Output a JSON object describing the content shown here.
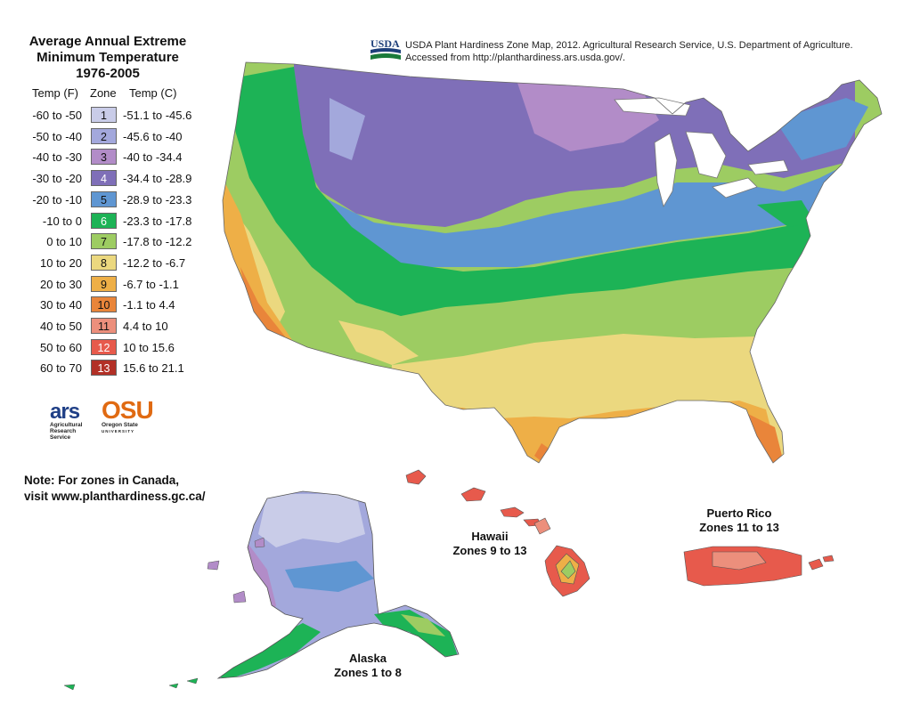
{
  "legend": {
    "title_lines": [
      "Average Annual Extreme",
      "Minimum Temperature",
      "1976-2005"
    ],
    "col_f": "Temp (F)",
    "col_zone": "Zone",
    "col_c": "Temp (C)",
    "zones": [
      {
        "f": "-60 to -50",
        "zone": "1",
        "c": "-51.1 to -45.6",
        "color": "#c9cce8"
      },
      {
        "f": "-50 to -40",
        "zone": "2",
        "c": "-45.6 to -40",
        "color": "#a3a8dc"
      },
      {
        "f": "-40 to -30",
        "zone": "3",
        "c": "-40 to -34.4",
        "color": "#b28cc8"
      },
      {
        "f": "-30 to -20",
        "zone": "4",
        "c": "-34.4 to -28.9",
        "color": "#7f6fb8"
      },
      {
        "f": "-20 to -10",
        "zone": "5",
        "c": "-28.9 to -23.3",
        "color": "#5f96d2"
      },
      {
        "f": "-10 to 0",
        "zone": "6",
        "c": "-23.3 to -17.8",
        "color": "#1db356"
      },
      {
        "f": "0 to 10",
        "zone": "7",
        "c": "-17.8 to -12.2",
        "color": "#9dcc62"
      },
      {
        "f": "10 to 20",
        "zone": "8",
        "c": "-12.2 to -6.7",
        "color": "#ebd87f"
      },
      {
        "f": "20 to 30",
        "zone": "9",
        "c": "-6.7 to -1.1",
        "color": "#eeaf47"
      },
      {
        "f": "30 to 40",
        "zone": "10",
        "c": "-1.1 to 4.4",
        "color": "#e9853a"
      },
      {
        "f": "40 to 50",
        "zone": "11",
        "c": "4.4 to 10",
        "color": "#ec8f7c"
      },
      {
        "f": "50 to 60",
        "zone": "12",
        "c": "10 to 15.6",
        "color": "#e75a4c"
      },
      {
        "f": "60 to 70",
        "zone": "13",
        "c": "15.6 to 21.1",
        "color": "#b23026"
      }
    ]
  },
  "source": {
    "logo_text": "USDA",
    "line1": "USDA Plant Hardiness Zone Map, 2012. Agricultural Research Service, U.S. Department of Agriculture.",
    "line2": "Accessed from http://planthardiness.ars.usda.gov/."
  },
  "logos": {
    "ars_mark": "ars",
    "ars_lines": [
      "Agricultural",
      "Research",
      "Service"
    ],
    "osu_mark": "OSU",
    "osu_lines": [
      "Oregon State",
      "UNIVERSITY"
    ]
  },
  "note": {
    "line1": "Note: For zones in Canada,",
    "line2": "visit www.planthardiness.gc.ca/"
  },
  "regions": {
    "hawaii": {
      "name": "Hawaii",
      "zones": "Zones 9 to 13"
    },
    "puerto_rico": {
      "name": "Puerto Rico",
      "zones": "Zones 11 to 13"
    },
    "alaska": {
      "name": "Alaska",
      "zones": "Zones 1 to 8"
    }
  }
}
